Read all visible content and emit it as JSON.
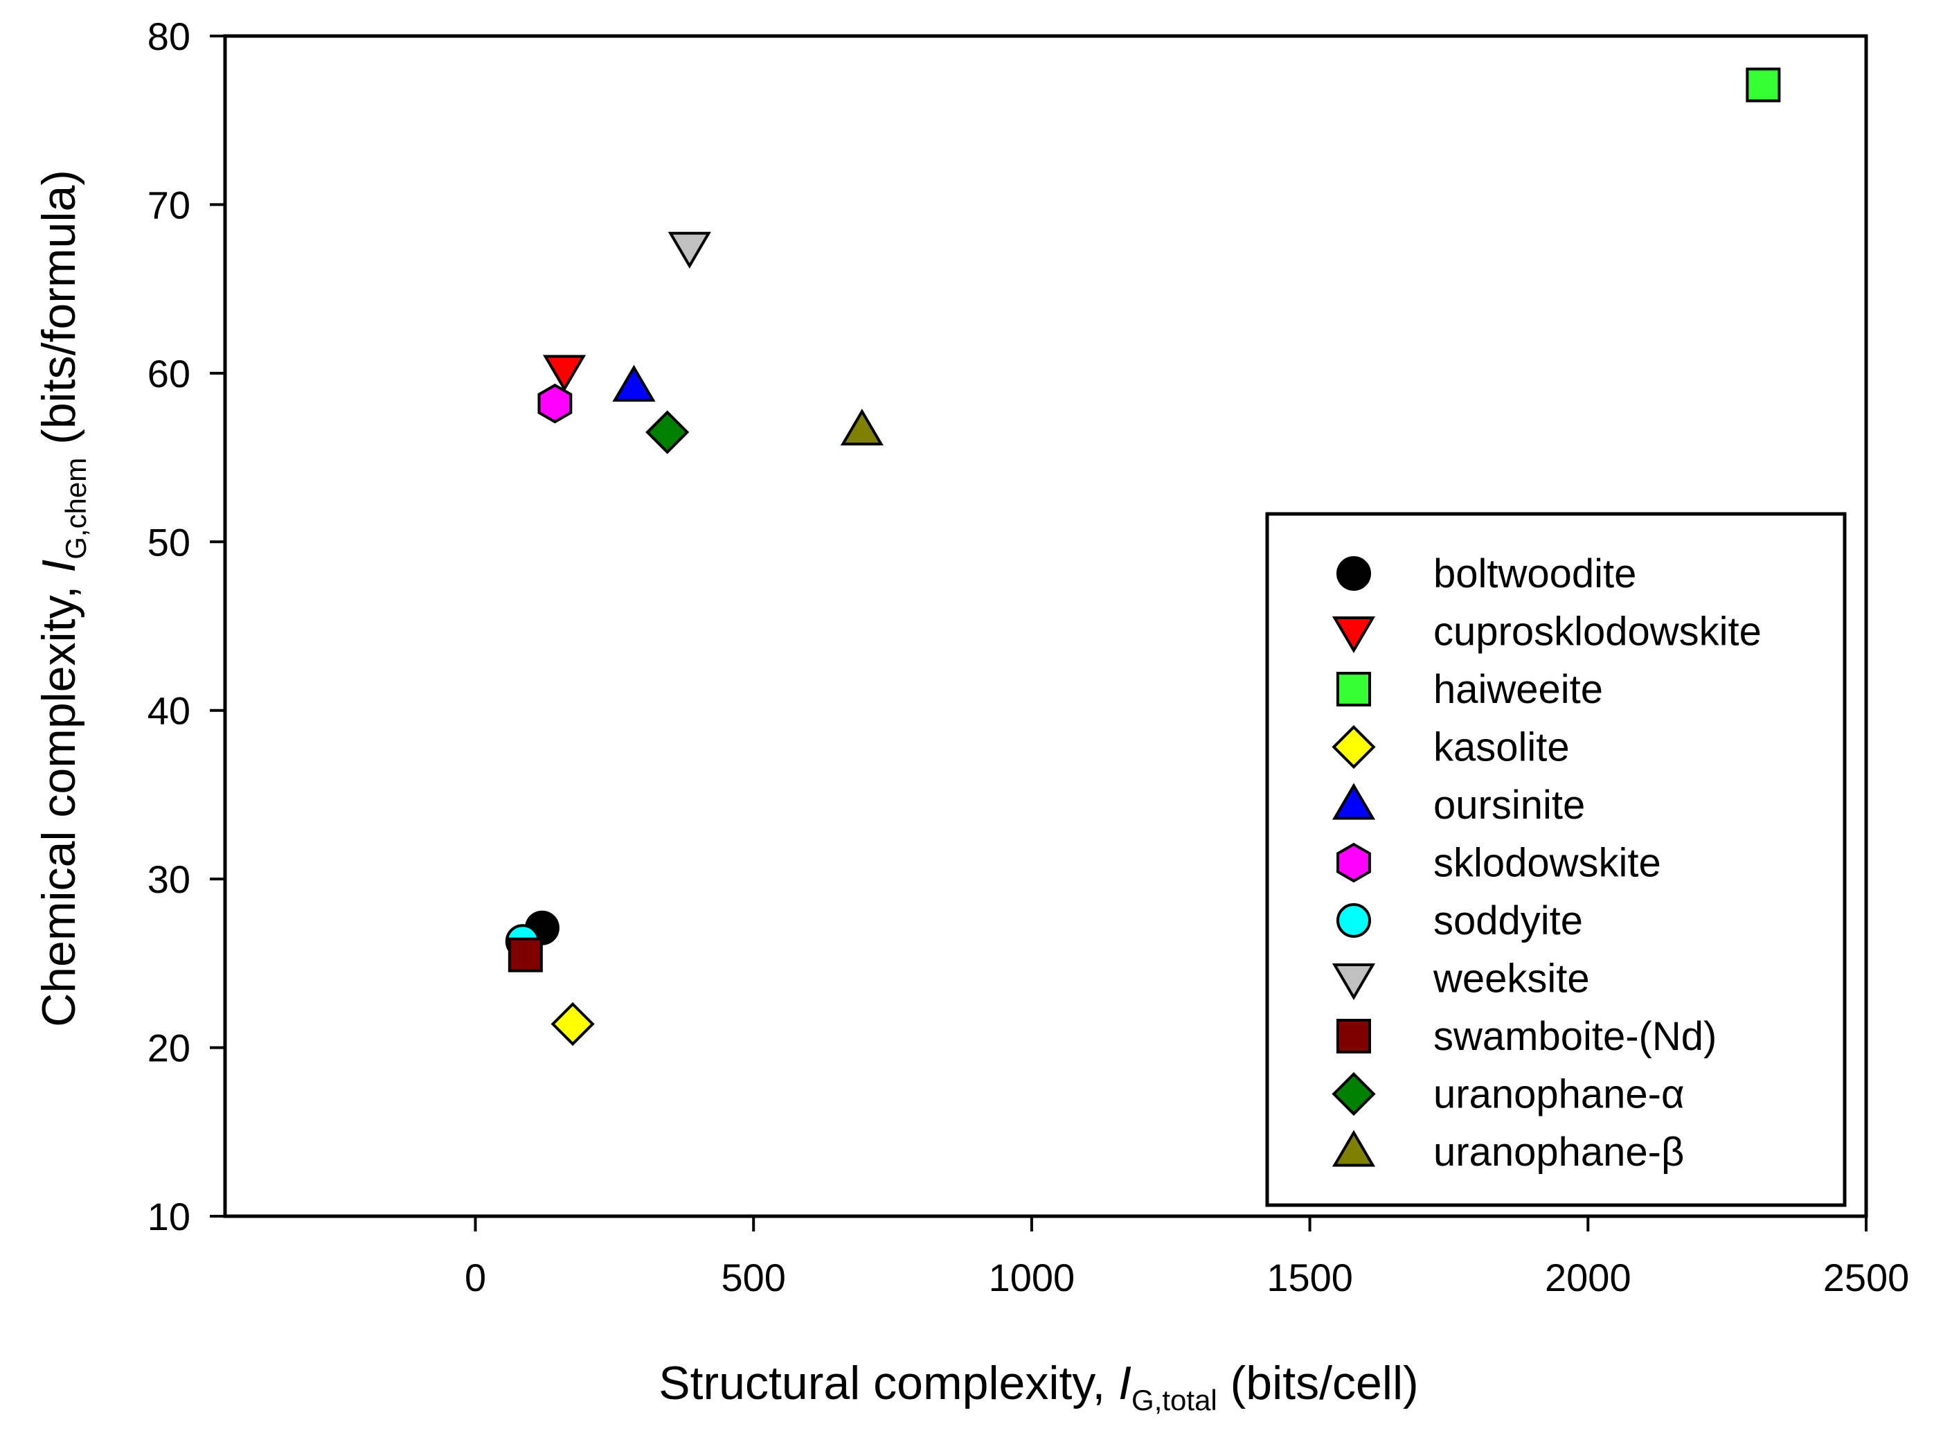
{
  "chart_data": {
    "type": "scatter",
    "title": "",
    "xlabel": {
      "pre": "Structural complexity, ",
      "italic": "I",
      "sub": "G,total",
      "post": " (bits/cell)"
    },
    "ylabel": {
      "pre": "Chemical complexity, ",
      "italic": "I",
      "sub": "G,chem",
      "post": " (bits/formula)"
    },
    "xlim": [
      -450,
      2500
    ],
    "ylim": [
      10,
      80
    ],
    "xticks": [
      0,
      500,
      1000,
      1500,
      2000,
      2500
    ],
    "yticks": [
      10,
      20,
      30,
      40,
      50,
      60,
      70,
      80
    ],
    "grid": false,
    "legend_position": "right",
    "series": [
      {
        "name": "boltwoodite",
        "marker": "circle",
        "color": "#000000",
        "x": 120,
        "y": 27.1
      },
      {
        "name": "cuprosklodowskite",
        "marker": "triangle-down",
        "color": "#ff0000",
        "x": 160,
        "y": 60.2
      },
      {
        "name": "haiweeite",
        "marker": "square",
        "color": "#33ff33",
        "x": 2315,
        "y": 77.1
      },
      {
        "name": "kasolite",
        "marker": "diamond",
        "color": "#ffff00",
        "x": 175,
        "y": 21.4
      },
      {
        "name": "oursinite",
        "marker": "triangle-up",
        "color": "#0000ff",
        "x": 285,
        "y": 59.2
      },
      {
        "name": "sklodowskite",
        "marker": "hexagon",
        "color": "#ff00ff",
        "x": 143,
        "y": 58.2
      },
      {
        "name": "soddyite",
        "marker": "circle",
        "color": "#00ffff",
        "x": 85,
        "y": 26.3
      },
      {
        "name": "weeksite",
        "marker": "triangle-down",
        "color": "#c0c0c0",
        "x": 385,
        "y": 67.5
      },
      {
        "name": "swamboite-(Nd)",
        "marker": "square",
        "color": "#800000",
        "x": 90,
        "y": 25.5
      },
      {
        "name": "uranophane-α",
        "marker": "diamond",
        "color": "#008000",
        "x": 345,
        "y": 56.5
      },
      {
        "name": "uranophane-β",
        "marker": "triangle-up",
        "color": "#808000",
        "x": 695,
        "y": 56.6
      }
    ]
  }
}
